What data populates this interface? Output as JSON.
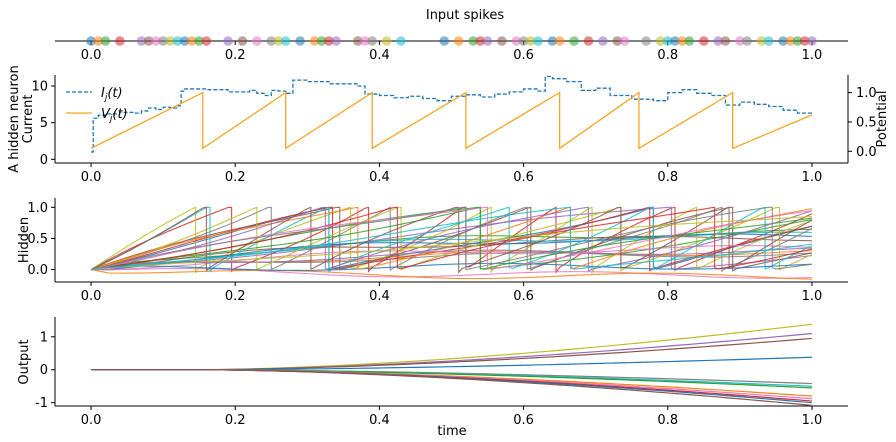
{
  "chart_data": [
    {
      "id": "spikes",
      "type": "scatter",
      "title": "Input spikes",
      "xlim": [
        -0.05,
        1.05
      ],
      "xticks": [
        "0.0",
        "0.2",
        "0.4",
        "0.6",
        "0.8",
        "1.0"
      ],
      "spike_times": [
        0.0,
        0.01,
        0.02,
        0.04,
        0.07,
        0.08,
        0.09,
        0.1,
        0.11,
        0.12,
        0.13,
        0.14,
        0.15,
        0.16,
        0.19,
        0.21,
        0.23,
        0.25,
        0.26,
        0.27,
        0.29,
        0.31,
        0.32,
        0.33,
        0.34,
        0.37,
        0.38,
        0.39,
        0.41,
        0.43,
        0.49,
        0.51,
        0.53,
        0.54,
        0.55,
        0.57,
        0.59,
        0.6,
        0.61,
        0.62,
        0.64,
        0.65,
        0.67,
        0.69,
        0.71,
        0.73,
        0.74,
        0.77,
        0.79,
        0.8,
        0.81,
        0.82,
        0.83,
        0.85,
        0.87,
        0.88,
        0.9,
        0.91,
        0.93,
        0.94,
        0.96,
        0.97,
        0.98,
        0.99,
        1.0
      ]
    },
    {
      "id": "neuron",
      "type": "line",
      "ylabel": "A hidden neuron\nCurrent",
      "ylabel_right": "Potential",
      "xlim": [
        -0.05,
        1.05
      ],
      "ylim": [
        -0.5,
        11.5
      ],
      "ylim_right": [
        -0.2,
        1.3
      ],
      "xticks": [
        "0.0",
        "0.2",
        "0.4",
        "0.6",
        "0.8",
        "1.0"
      ],
      "yticks": [
        0,
        5,
        10
      ],
      "yticks_right": [
        0.0,
        0.5,
        1.0
      ],
      "legend": [
        "I_j(t)",
        "V_j(t)"
      ],
      "legend_position": "top-left",
      "current": {
        "name": "I_j(t)",
        "x": [
          0.0,
          0.003,
          0.01,
          0.02,
          0.04,
          0.06,
          0.07,
          0.08,
          0.09,
          0.1,
          0.11,
          0.12,
          0.125,
          0.13,
          0.16,
          0.19,
          0.22,
          0.23,
          0.24,
          0.25,
          0.26,
          0.27,
          0.28,
          0.3,
          0.33,
          0.35,
          0.37,
          0.38,
          0.4,
          0.42,
          0.44,
          0.46,
          0.48,
          0.5,
          0.52,
          0.54,
          0.56,
          0.58,
          0.6,
          0.62,
          0.63,
          0.64,
          0.66,
          0.68,
          0.7,
          0.72,
          0.75,
          0.78,
          0.8,
          0.82,
          0.84,
          0.86,
          0.88,
          0.9,
          0.92,
          0.94,
          0.96,
          0.98,
          1.0
        ],
        "y": [
          1.0,
          5.6,
          6.0,
          6.2,
          6.4,
          6.3,
          6.6,
          7.0,
          6.8,
          7.1,
          7.0,
          7.3,
          9.3,
          9.6,
          9.5,
          9.2,
          9.4,
          9.0,
          8.7,
          9.4,
          9.3,
          9.0,
          10.8,
          10.6,
          10.3,
          10.3,
          10.0,
          8.9,
          8.7,
          8.4,
          8.6,
          8.3,
          8.0,
          8.6,
          8.8,
          8.5,
          8.9,
          9.2,
          9.6,
          9.3,
          11.3,
          11.0,
          10.6,
          9.4,
          9.7,
          8.7,
          8.2,
          8.0,
          9.1,
          9.5,
          9.0,
          8.7,
          7.4,
          7.8,
          7.5,
          7.2,
          6.7,
          6.3,
          6.0
        ]
      },
      "potential": {
        "name": "V_j(t)",
        "spike_times": [
          0.155,
          0.27,
          0.39,
          0.52,
          0.65,
          0.76,
          0.89
        ],
        "reset_level": 0.05,
        "threshold": 1.0,
        "end_value": 0.62
      }
    },
    {
      "id": "hidden",
      "type": "line",
      "ylabel": "Hidden",
      "xlim": [
        -0.05,
        1.05
      ],
      "ylim": [
        -0.2,
        1.15
      ],
      "xticks": [
        "0.0",
        "0.2",
        "0.4",
        "0.6",
        "0.8",
        "1.0"
      ],
      "yticks": [
        0.0,
        0.5,
        1.0
      ],
      "n_series": 30
    },
    {
      "id": "output",
      "type": "line",
      "ylabel": "Output",
      "xlabel": "time",
      "xlim": [
        -0.05,
        1.05
      ],
      "ylim": [
        -1.1,
        1.6
      ],
      "xticks": [
        "0.0",
        "0.2",
        "0.4",
        "0.6",
        "0.8",
        "1.0"
      ],
      "yticks": [
        -1,
        0,
        1
      ],
      "onset": 0.15,
      "series_final_values": [
        1.38,
        1.1,
        0.95,
        0.38,
        -0.42,
        -0.5,
        -0.55,
        -0.8,
        -0.88,
        -0.95,
        -1.0,
        -1.08
      ]
    }
  ]
}
